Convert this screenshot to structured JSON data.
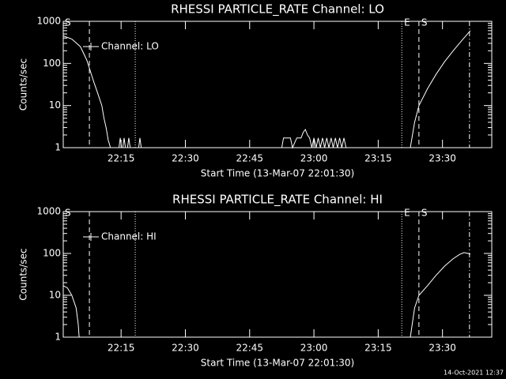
{
  "chart_data": [
    {
      "type": "line",
      "title": "RHESSI PARTICLE_RATE Channel: LO",
      "xlabel": "Start Time (13-Mar-07 22:01:30)",
      "ylabel": "Counts/sec",
      "xlim": [
        0,
        100
      ],
      "xticks": [
        {
          "value": 13.5,
          "label": "22:15"
        },
        {
          "value": 28.5,
          "label": "22:30"
        },
        {
          "value": 43.5,
          "label": "22:45"
        },
        {
          "value": 58.5,
          "label": "23:00"
        },
        {
          "value": 73.5,
          "label": "23:15"
        },
        {
          "value": 88.5,
          "label": "23:30"
        }
      ],
      "ylim": [
        1,
        1000
      ],
      "yticks": [
        1,
        10,
        100,
        1000
      ],
      "log_y": true,
      "legend": "upper left",
      "markers": [
        {
          "x": 6.1,
          "style": "dashed"
        },
        {
          "x": 16.8,
          "style": "dotted"
        },
        {
          "x": 79,
          "style": "dotted",
          "label": "E"
        },
        {
          "x": 83,
          "style": "dashed",
          "label": "S"
        },
        {
          "x": 94.8,
          "style": "dashdot"
        }
      ],
      "annotation": "S",
      "x": [
        0,
        2,
        4,
        5.5,
        7,
        8,
        9,
        9.5,
        10,
        10.3,
        10.5,
        10.8,
        11,
        13,
        13.3,
        13.6,
        13.9,
        14.2,
        14.5,
        15,
        15.3,
        15.6,
        17.6,
        17.9,
        18.2,
        51,
        51.4,
        53,
        53.5,
        54.5,
        55.5,
        56,
        56.5,
        57,
        57.5,
        58,
        58.5,
        59,
        59.5,
        60,
        60.5,
        61,
        61.5,
        62,
        62.5,
        63,
        63.5,
        64,
        64.5,
        65,
        65.5,
        66,
        81,
        82,
        83,
        85,
        87,
        89,
        91,
        93,
        95
      ],
      "series": [
        {
          "name": "Channel: LO",
          "color": "#ffffff",
          "values": [
            450,
            380,
            250,
            120,
            40,
            20,
            10,
            5,
            3,
            2,
            1.5,
            1.2,
            1,
            1,
            1.7,
            1,
            1,
            1.7,
            1,
            1,
            1.7,
            1,
            1,
            1.7,
            1,
            1,
            1.7,
            1.7,
            1,
            1.7,
            1.7,
            2.3,
            2.7,
            2,
            1.7,
            1,
            1.7,
            1,
            1.7,
            1,
            1.7,
            1,
            1.7,
            1,
            1.7,
            1,
            1.7,
            1,
            1.7,
            1,
            1.7,
            1,
            1,
            4,
            10,
            25,
            55,
            110,
            200,
            350,
            600
          ]
        }
      ]
    },
    {
      "type": "line",
      "title": "RHESSI PARTICLE_RATE Channel: HI",
      "xlabel": "Start Time (13-Mar-07 22:01:30)",
      "ylabel": "Counts/sec",
      "xlim": [
        0,
        100
      ],
      "xticks": [
        {
          "value": 13.5,
          "label": "22:15"
        },
        {
          "value": 28.5,
          "label": "22:30"
        },
        {
          "value": 43.5,
          "label": "22:45"
        },
        {
          "value": 58.5,
          "label": "23:00"
        },
        {
          "value": 73.5,
          "label": "23:15"
        },
        {
          "value": 88.5,
          "label": "23:30"
        }
      ],
      "ylim": [
        1,
        1000
      ],
      "yticks": [
        1,
        10,
        100,
        1000
      ],
      "log_y": true,
      "legend": "upper left",
      "markers": [
        {
          "x": 6.1,
          "style": "dashed"
        },
        {
          "x": 16.8,
          "style": "dotted"
        },
        {
          "x": 79,
          "style": "dotted",
          "label": "E"
        },
        {
          "x": 83,
          "style": "dashed",
          "label": "S"
        },
        {
          "x": 94.8,
          "style": "dashdot"
        }
      ],
      "annotation": "S",
      "x": [
        0,
        1,
        2,
        3,
        3.5,
        3.7,
        50,
        81,
        82,
        83,
        85,
        87,
        89,
        91,
        92.5,
        93.5,
        94.5,
        95
      ],
      "series": [
        {
          "name": "Channel: HI",
          "color": "#ffffff",
          "values": [
            17,
            15,
            10,
            5,
            2,
            1,
            null,
            1,
            5,
            10,
            17,
            30,
            50,
            75,
            95,
            105,
            100,
            95
          ]
        }
      ]
    }
  ],
  "footer": "14-Oct-2021 12:37"
}
